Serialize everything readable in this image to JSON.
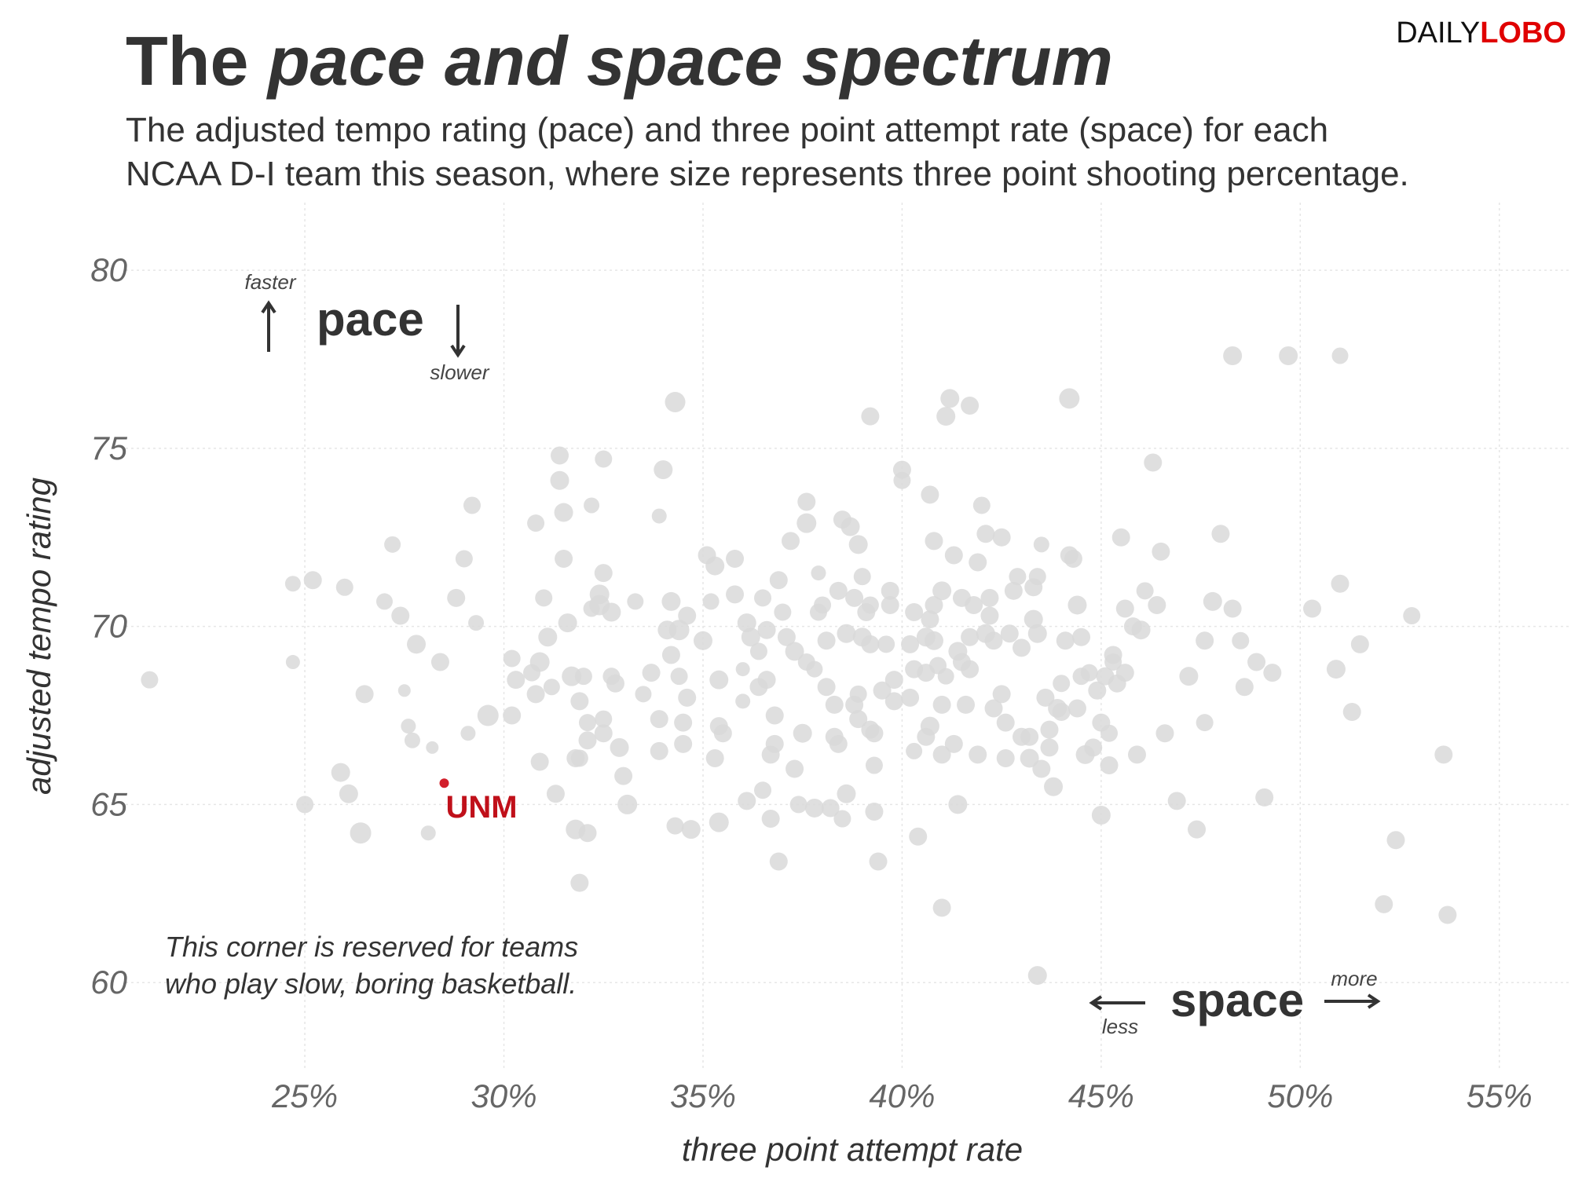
{
  "header": {
    "title_plain": "The ",
    "title_italic": "pace and space spectrum",
    "subtitle_line1": "The adjusted tempo rating (pace) and three point attempt rate (space) for each",
    "subtitle_line2": "NCAA D-I team this season, where size represents three point shooting percentage.",
    "logo_daily": "DAILY",
    "logo_lobo": "LOBO"
  },
  "annotations": {
    "pace_label": "pace",
    "faster": "faster",
    "slower": "slower",
    "space_label": "space",
    "less": "less",
    "more": "more",
    "corner_note_line1": "This corner is reserved for teams",
    "corner_note_line2": "who play slow, boring basketball.",
    "highlight_label": "UNM"
  },
  "colors": {
    "point": "#d9d9d9",
    "highlight": "#d21f2b",
    "highlight_label": "#c0101a",
    "logo_lobo": "#e00000",
    "text": "#333333"
  },
  "chart_data": {
    "type": "scatter",
    "xlabel": "three point attempt rate",
    "ylabel": "adjusted tempo rating",
    "xlim": [
      20.5,
      56.8
    ],
    "ylim": [
      57.6,
      81.9
    ],
    "x_ticks": [
      25,
      30,
      35,
      40,
      45,
      50,
      55
    ],
    "x_tick_labels": [
      "25%",
      "30%",
      "35%",
      "40%",
      "45%",
      "50%",
      "55%"
    ],
    "y_ticks": [
      60,
      65,
      70,
      75,
      80
    ],
    "y_tick_labels": [
      "60",
      "65",
      "70",
      "75",
      "80"
    ],
    "grid": true,
    "size_encodes": "three point shooting percentage",
    "highlight": {
      "name": "UNM",
      "x": 28.5,
      "y": 65.6,
      "size": 0.1
    },
    "points": [
      [
        21.1,
        68.5,
        0.5
      ],
      [
        24.7,
        71.2,
        0.4
      ],
      [
        24.7,
        69.0,
        0.3
      ],
      [
        25.0,
        65.0,
        0.5
      ],
      [
        25.2,
        71.3,
        0.55
      ],
      [
        25.9,
        65.9,
        0.6
      ],
      [
        26.0,
        71.1,
        0.5
      ],
      [
        26.1,
        65.3,
        0.6
      ],
      [
        26.4,
        64.2,
        0.75
      ],
      [
        26.5,
        68.1,
        0.55
      ],
      [
        27.0,
        70.7,
        0.45
      ],
      [
        27.2,
        72.3,
        0.45
      ],
      [
        27.4,
        70.3,
        0.55
      ],
      [
        27.5,
        68.2,
        0.2
      ],
      [
        27.6,
        67.2,
        0.35
      ],
      [
        27.7,
        66.8,
        0.4
      ],
      [
        27.8,
        69.5,
        0.6
      ],
      [
        28.1,
        64.2,
        0.35
      ],
      [
        28.2,
        66.6,
        0.2
      ],
      [
        28.4,
        69.0,
        0.55
      ],
      [
        28.8,
        70.8,
        0.55
      ],
      [
        29.1,
        67.0,
        0.35
      ],
      [
        29.0,
        71.9,
        0.5
      ],
      [
        29.2,
        73.4,
        0.5
      ],
      [
        29.3,
        70.1,
        0.4
      ],
      [
        29.6,
        67.5,
        0.75
      ],
      [
        30.2,
        69.1,
        0.5
      ],
      [
        30.3,
        68.5,
        0.55
      ],
      [
        30.2,
        67.5,
        0.55
      ],
      [
        30.7,
        68.7,
        0.5
      ],
      [
        30.8,
        72.9,
        0.5
      ],
      [
        30.8,
        68.1,
        0.55
      ],
      [
        30.9,
        66.2,
        0.55
      ],
      [
        30.9,
        69.0,
        0.65
      ],
      [
        31.0,
        70.8,
        0.5
      ],
      [
        31.1,
        69.7,
        0.6
      ],
      [
        31.2,
        68.3,
        0.45
      ],
      [
        31.3,
        65.3,
        0.55
      ],
      [
        31.4,
        74.8,
        0.55
      ],
      [
        31.4,
        74.1,
        0.6
      ],
      [
        31.5,
        73.2,
        0.6
      ],
      [
        31.5,
        71.9,
        0.55
      ],
      [
        31.6,
        70.1,
        0.6
      ],
      [
        31.7,
        68.6,
        0.65
      ],
      [
        31.8,
        66.3,
        0.55
      ],
      [
        31.8,
        64.3,
        0.65
      ],
      [
        31.9,
        66.3,
        0.5
      ],
      [
        31.9,
        67.9,
        0.55
      ],
      [
        31.9,
        62.8,
        0.55
      ],
      [
        32.0,
        68.6,
        0.5
      ],
      [
        32.1,
        67.3,
        0.5
      ],
      [
        32.1,
        66.8,
        0.55
      ],
      [
        32.1,
        64.2,
        0.55
      ],
      [
        32.2,
        73.4,
        0.4
      ],
      [
        32.2,
        70.5,
        0.45
      ],
      [
        32.4,
        70.9,
        0.65
      ],
      [
        32.4,
        70.6,
        0.7
      ],
      [
        32.5,
        71.5,
        0.55
      ],
      [
        32.5,
        74.7,
        0.5
      ],
      [
        32.5,
        67.0,
        0.55
      ],
      [
        32.5,
        67.4,
        0.5
      ],
      [
        32.7,
        70.4,
        0.6
      ],
      [
        32.7,
        68.6,
        0.5
      ],
      [
        32.8,
        68.4,
        0.55
      ],
      [
        32.9,
        66.6,
        0.6
      ],
      [
        33.0,
        65.8,
        0.55
      ],
      [
        33.1,
        65.0,
        0.65
      ],
      [
        33.3,
        70.7,
        0.45
      ],
      [
        33.5,
        68.1,
        0.45
      ],
      [
        33.7,
        68.7,
        0.55
      ],
      [
        33.9,
        73.1,
        0.35
      ],
      [
        33.9,
        67.4,
        0.55
      ],
      [
        33.9,
        66.5,
        0.55
      ],
      [
        34.0,
        74.4,
        0.6
      ],
      [
        34.1,
        69.9,
        0.6
      ],
      [
        34.2,
        69.2,
        0.55
      ],
      [
        34.2,
        70.7,
        0.6
      ],
      [
        34.3,
        64.4,
        0.5
      ],
      [
        34.3,
        76.3,
        0.7
      ],
      [
        34.4,
        69.9,
        0.7
      ],
      [
        34.4,
        68.6,
        0.5
      ],
      [
        34.5,
        67.3,
        0.55
      ],
      [
        34.5,
        66.7,
        0.55
      ],
      [
        34.6,
        68.0,
        0.55
      ],
      [
        34.6,
        70.3,
        0.55
      ],
      [
        34.7,
        64.3,
        0.6
      ],
      [
        35.0,
        69.6,
        0.6
      ],
      [
        35.1,
        72.0,
        0.55
      ],
      [
        35.2,
        70.7,
        0.45
      ],
      [
        35.3,
        66.3,
        0.55
      ],
      [
        35.3,
        71.7,
        0.6
      ],
      [
        35.4,
        67.2,
        0.55
      ],
      [
        35.4,
        68.5,
        0.6
      ],
      [
        35.4,
        64.5,
        0.65
      ],
      [
        35.5,
        67.0,
        0.55
      ],
      [
        35.8,
        71.9,
        0.55
      ],
      [
        35.8,
        70.9,
        0.55
      ],
      [
        36.0,
        68.8,
        0.3
      ],
      [
        36.0,
        67.9,
        0.35
      ],
      [
        36.1,
        65.1,
        0.55
      ],
      [
        36.1,
        70.1,
        0.6
      ],
      [
        36.2,
        69.7,
        0.6
      ],
      [
        36.4,
        68.3,
        0.55
      ],
      [
        36.5,
        65.4,
        0.5
      ],
      [
        36.5,
        70.8,
        0.5
      ],
      [
        36.6,
        69.9,
        0.55
      ],
      [
        36.6,
        68.5,
        0.55
      ],
      [
        36.7,
        66.4,
        0.55
      ],
      [
        36.7,
        64.6,
        0.55
      ],
      [
        36.8,
        66.7,
        0.55
      ],
      [
        36.8,
        67.5,
        0.55
      ],
      [
        36.9,
        63.4,
        0.55
      ],
      [
        36.9,
        71.3,
        0.55
      ],
      [
        37.0,
        70.4,
        0.5
      ],
      [
        37.1,
        69.7,
        0.55
      ],
      [
        37.2,
        72.4,
        0.55
      ],
      [
        37.3,
        69.3,
        0.6
      ],
      [
        37.3,
        66.0,
        0.55
      ],
      [
        37.4,
        65.0,
        0.5
      ],
      [
        37.5,
        67.0,
        0.6
      ],
      [
        37.6,
        73.5,
        0.55
      ],
      [
        37.6,
        72.9,
        0.65
      ],
      [
        37.6,
        69.0,
        0.5
      ],
      [
        37.8,
        68.8,
        0.45
      ],
      [
        37.8,
        64.9,
        0.6
      ],
      [
        37.9,
        71.5,
        0.35
      ],
      [
        37.9,
        70.4,
        0.5
      ],
      [
        38.0,
        70.6,
        0.5
      ],
      [
        38.1,
        68.3,
        0.55
      ],
      [
        38.1,
        69.6,
        0.55
      ],
      [
        38.2,
        64.9,
        0.55
      ],
      [
        38.3,
        67.8,
        0.55
      ],
      [
        38.4,
        66.7,
        0.55
      ],
      [
        38.4,
        71.0,
        0.55
      ],
      [
        38.5,
        64.6,
        0.5
      ],
      [
        38.5,
        73.0,
        0.55
      ],
      [
        38.6,
        69.8,
        0.6
      ],
      [
        38.6,
        65.3,
        0.6
      ],
      [
        38.7,
        72.8,
        0.6
      ],
      [
        38.8,
        67.8,
        0.55
      ],
      [
        38.8,
        70.8,
        0.55
      ],
      [
        38.9,
        67.4,
        0.55
      ],
      [
        38.9,
        72.3,
        0.6
      ],
      [
        38.9,
        68.1,
        0.5
      ],
      [
        39.0,
        71.4,
        0.5
      ],
      [
        39.0,
        69.7,
        0.6
      ],
      [
        39.1,
        70.4,
        0.55
      ],
      [
        39.2,
        70.6,
        0.5
      ],
      [
        39.2,
        69.5,
        0.55
      ],
      [
        39.2,
        67.1,
        0.55
      ],
      [
        39.3,
        64.8,
        0.55
      ],
      [
        39.3,
        67.0,
        0.55
      ],
      [
        39.3,
        66.1,
        0.5
      ],
      [
        39.4,
        63.4,
        0.55
      ],
      [
        39.5,
        68.2,
        0.55
      ],
      [
        39.6,
        69.5,
        0.5
      ],
      [
        39.7,
        71.0,
        0.55
      ],
      [
        39.7,
        70.6,
        0.55
      ],
      [
        39.8,
        68.5,
        0.55
      ],
      [
        39.8,
        67.9,
        0.55
      ],
      [
        40.0,
        74.4,
        0.55
      ],
      [
        40.0,
        74.1,
        0.5
      ],
      [
        40.2,
        68.0,
        0.55
      ],
      [
        40.2,
        69.5,
        0.55
      ],
      [
        40.3,
        66.5,
        0.45
      ],
      [
        40.3,
        70.4,
        0.55
      ],
      [
        40.3,
        68.8,
        0.55
      ],
      [
        40.4,
        64.1,
        0.55
      ],
      [
        40.6,
        68.7,
        0.55
      ],
      [
        40.6,
        66.9,
        0.55
      ],
      [
        40.6,
        69.7,
        0.6
      ],
      [
        40.7,
        70.2,
        0.55
      ],
      [
        40.7,
        73.7,
        0.55
      ],
      [
        40.7,
        67.2,
        0.6
      ],
      [
        40.8,
        72.4,
        0.55
      ],
      [
        40.8,
        70.6,
        0.55
      ],
      [
        40.8,
        69.6,
        0.6
      ],
      [
        40.9,
        68.9,
        0.5
      ],
      [
        41.0,
        66.4,
        0.55
      ],
      [
        41.0,
        67.8,
        0.55
      ],
      [
        41.0,
        71.0,
        0.6
      ],
      [
        41.0,
        62.1,
        0.55
      ],
      [
        41.1,
        75.9,
        0.6
      ],
      [
        41.1,
        68.6,
        0.45
      ],
      [
        41.3,
        66.7,
        0.55
      ],
      [
        41.3,
        72.0,
        0.55
      ],
      [
        41.4,
        69.3,
        0.6
      ],
      [
        41.4,
        65.0,
        0.6
      ],
      [
        41.5,
        69.0,
        0.55
      ],
      [
        41.5,
        70.8,
        0.55
      ],
      [
        41.6,
        67.8,
        0.55
      ],
      [
        41.7,
        69.7,
        0.55
      ],
      [
        41.7,
        68.8,
        0.55
      ],
      [
        41.8,
        70.6,
        0.55
      ],
      [
        41.9,
        71.8,
        0.55
      ],
      [
        41.9,
        66.4,
        0.55
      ],
      [
        42.0,
        73.4,
        0.5
      ],
      [
        42.1,
        69.8,
        0.6
      ],
      [
        42.1,
        72.6,
        0.55
      ],
      [
        42.2,
        70.3,
        0.55
      ],
      [
        42.3,
        67.7,
        0.55
      ],
      [
        42.3,
        69.6,
        0.55
      ],
      [
        42.5,
        68.1,
        0.55
      ],
      [
        42.5,
        72.5,
        0.55
      ],
      [
        42.6,
        66.3,
        0.55
      ],
      [
        42.6,
        67.3,
        0.55
      ],
      [
        42.7,
        69.8,
        0.55
      ],
      [
        42.8,
        71.0,
        0.55
      ],
      [
        42.9,
        71.4,
        0.5
      ],
      [
        43.0,
        69.4,
        0.55
      ],
      [
        43.0,
        66.9,
        0.55
      ],
      [
        43.2,
        66.9,
        0.55
      ],
      [
        43.2,
        66.3,
        0.6
      ],
      [
        43.3,
        71.1,
        0.55
      ],
      [
        43.3,
        70.2,
        0.6
      ],
      [
        43.4,
        60.2,
        0.6
      ],
      [
        43.4,
        69.8,
        0.6
      ],
      [
        43.4,
        71.4,
        0.5
      ],
      [
        43.5,
        66.0,
        0.55
      ],
      [
        43.6,
        68.0,
        0.55
      ],
      [
        43.7,
        66.6,
        0.55
      ],
      [
        43.7,
        67.1,
        0.55
      ],
      [
        43.8,
        65.5,
        0.6
      ],
      [
        43.9,
        67.7,
        0.6
      ],
      [
        44.0,
        67.6,
        0.55
      ],
      [
        44.0,
        68.4,
        0.5
      ],
      [
        44.1,
        69.6,
        0.55
      ],
      [
        44.2,
        72.0,
        0.55
      ],
      [
        44.2,
        76.4,
        0.7
      ],
      [
        44.3,
        71.9,
        0.55
      ],
      [
        44.4,
        70.6,
        0.6
      ],
      [
        44.4,
        67.7,
        0.55
      ],
      [
        44.5,
        69.7,
        0.55
      ],
      [
        44.5,
        68.6,
        0.5
      ],
      [
        44.6,
        66.4,
        0.6
      ],
      [
        44.7,
        68.7,
        0.5
      ],
      [
        44.8,
        66.6,
        0.55
      ],
      [
        44.9,
        68.2,
        0.55
      ],
      [
        45.0,
        67.3,
        0.55
      ],
      [
        45.0,
        64.7,
        0.6
      ],
      [
        45.1,
        68.6,
        0.55
      ],
      [
        45.2,
        66.1,
        0.55
      ],
      [
        45.2,
        67.0,
        0.5
      ],
      [
        45.3,
        69.2,
        0.55
      ],
      [
        45.3,
        69.0,
        0.5
      ],
      [
        45.4,
        68.4,
        0.55
      ],
      [
        45.5,
        72.5,
        0.55
      ],
      [
        45.6,
        70.5,
        0.55
      ],
      [
        45.6,
        68.7,
        0.55
      ],
      [
        45.8,
        70.0,
        0.55
      ],
      [
        45.9,
        66.4,
        0.55
      ],
      [
        46.0,
        69.9,
        0.6
      ],
      [
        46.1,
        71.0,
        0.5
      ],
      [
        46.3,
        74.6,
        0.55
      ],
      [
        46.4,
        70.6,
        0.55
      ],
      [
        46.5,
        72.1,
        0.55
      ],
      [
        46.6,
        67.0,
        0.55
      ],
      [
        46.9,
        65.1,
        0.55
      ],
      [
        47.2,
        68.6,
        0.6
      ],
      [
        47.4,
        64.3,
        0.55
      ],
      [
        47.6,
        69.6,
        0.55
      ],
      [
        47.6,
        67.3,
        0.5
      ],
      [
        47.8,
        70.7,
        0.6
      ],
      [
        48.0,
        72.6,
        0.55
      ],
      [
        48.3,
        70.5,
        0.55
      ],
      [
        48.5,
        69.6,
        0.5
      ],
      [
        48.6,
        68.3,
        0.55
      ],
      [
        48.9,
        69.0,
        0.55
      ],
      [
        49.1,
        65.2,
        0.55
      ],
      [
        49.3,
        68.7,
        0.55
      ],
      [
        49.7,
        77.6,
        0.6
      ],
      [
        50.3,
        70.5,
        0.55
      ],
      [
        50.9,
        68.8,
        0.6
      ],
      [
        51.0,
        71.2,
        0.55
      ],
      [
        51.3,
        67.6,
        0.55
      ],
      [
        51.5,
        69.5,
        0.55
      ],
      [
        52.1,
        62.2,
        0.55
      ],
      [
        52.4,
        64.0,
        0.55
      ],
      [
        53.6,
        66.4,
        0.55
      ],
      [
        53.7,
        61.9,
        0.55
      ],
      [
        52.8,
        70.3,
        0.5
      ],
      [
        51.0,
        77.6,
        0.45
      ],
      [
        48.3,
        77.6,
        0.6
      ],
      [
        41.7,
        76.2,
        0.55
      ],
      [
        41.2,
        76.4,
        0.6
      ],
      [
        39.2,
        75.9,
        0.55
      ],
      [
        42.2,
        70.8,
        0.55
      ],
      [
        43.5,
        72.3,
        0.4
      ],
      [
        38.3,
        66.9,
        0.55
      ],
      [
        36.4,
        69.3,
        0.5
      ]
    ]
  }
}
